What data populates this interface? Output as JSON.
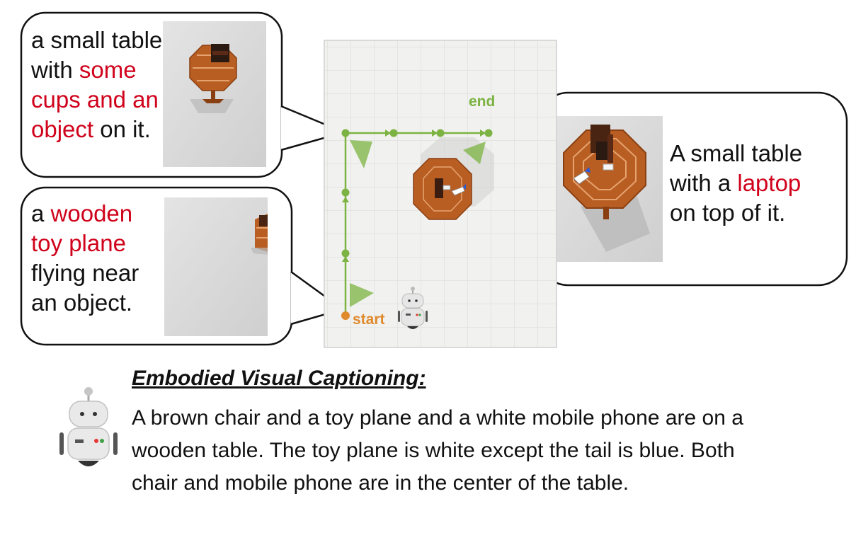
{
  "colors": {
    "highlight": "#d0021b",
    "path_green": "#7cb342",
    "start_orange": "#e08a2e",
    "table_wood": "#b85e22",
    "chair_dark": "#5b2a16",
    "floor": "#f1f1ef"
  },
  "map": {
    "start_label": "start",
    "end_label": "end"
  },
  "bubbles": {
    "top_left": {
      "lines": [
        [
          {
            "t": "a small table",
            "hl": false
          }
        ],
        [
          {
            "t": "with ",
            "hl": false
          },
          {
            "t": "some",
            "hl": true
          }
        ],
        [
          {
            "t": "cups and an",
            "hl": true
          }
        ],
        [
          {
            "t": "object",
            "hl": true
          },
          {
            "t": " on it.",
            "hl": false
          }
        ]
      ]
    },
    "bottom_left": {
      "lines": [
        [
          {
            "t": "a ",
            "hl": false
          },
          {
            "t": "wooden",
            "hl": true
          }
        ],
        [
          {
            "t": "toy plane",
            "hl": true
          }
        ],
        [
          {
            "t": "flying near",
            "hl": false
          }
        ],
        [
          {
            "t": "an object.",
            "hl": false
          }
        ]
      ]
    },
    "right": {
      "lines": [
        [
          {
            "t": "A small table",
            "hl": false
          }
        ],
        [
          {
            "t": "with a ",
            "hl": false
          },
          {
            "t": "laptop",
            "hl": true
          }
        ],
        [
          {
            "t": "on top of it.",
            "hl": false
          }
        ]
      ]
    }
  },
  "caption": {
    "title": "Embodied Visual Captioning:",
    "lines": [
      "A brown chair and a toy plane and a white mobile phone are on a",
      "wooden table. The toy plane is white except the tail is blue. Both",
      "chair and mobile phone are in the center of the table."
    ]
  }
}
